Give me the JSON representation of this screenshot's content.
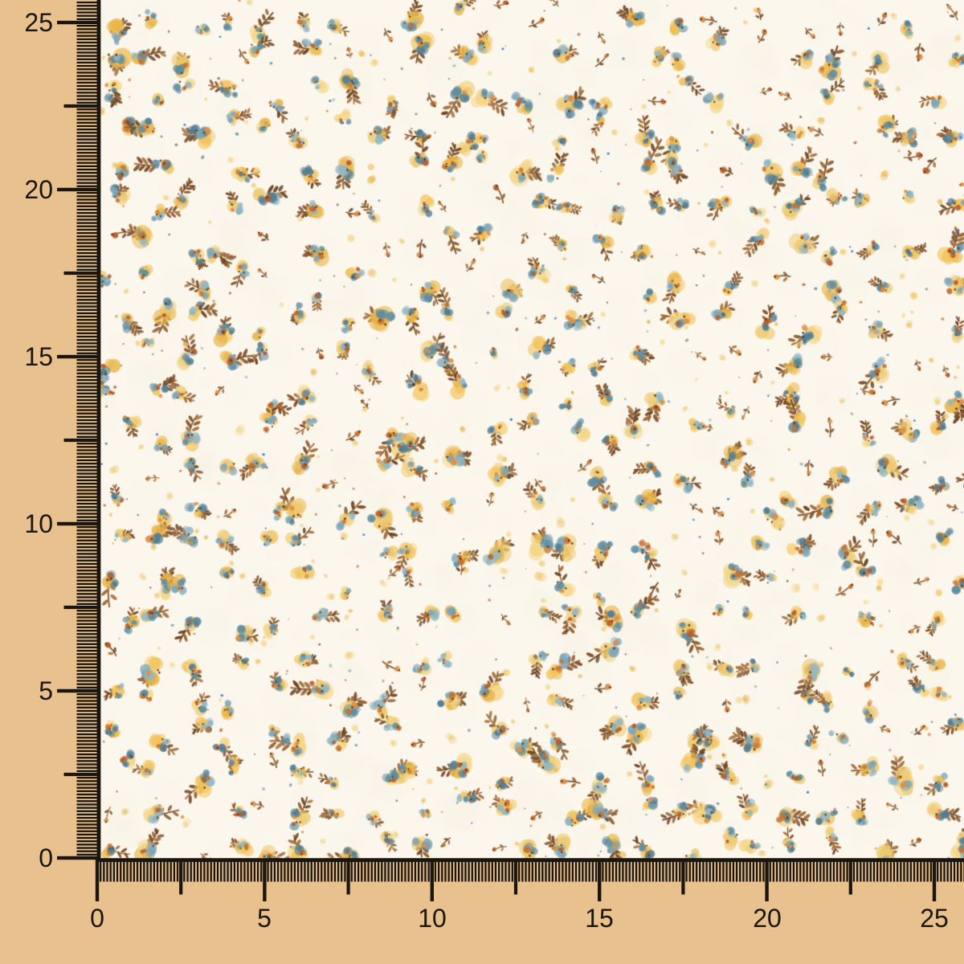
{
  "photo": {
    "subject": "Small floral print fabric swatch photographed behind centimeter rulers",
    "background_color": "#e8c18f"
  },
  "ruler": {
    "unit": "cm",
    "tick_color": "#1b160e",
    "label_color": "#1b160e",
    "vertical": {
      "labels": [
        "25",
        "20",
        "15",
        "10",
        "5",
        "0"
      ]
    },
    "horizontal": {
      "labels": [
        "0",
        "5",
        "10",
        "15",
        "20",
        "25"
      ]
    }
  },
  "fabric": {
    "base_color": "#fcf7ed",
    "edge_color": "#1b160e",
    "motifs": [
      "leafy-sprig",
      "flower-bud",
      "flower-cluster",
      "dot"
    ],
    "palette": {
      "yellow": [
        "#f2c35a",
        "#eeca70",
        "#e9b548",
        "#f5d584"
      ],
      "blue": [
        "#7da6b8",
        "#5f8da2",
        "#93b7c4",
        "#527e94"
      ],
      "brown": [
        "#7c4b22",
        "#8f5c2c",
        "#693e1b",
        "#a06a35"
      ],
      "orange": [
        "#ca732f",
        "#dc9045",
        "#b85d28"
      ],
      "accent_blue": "#2f6ed2",
      "dark_dot": "#5a3718",
      "mottle": "#f1e6d2"
    }
  }
}
